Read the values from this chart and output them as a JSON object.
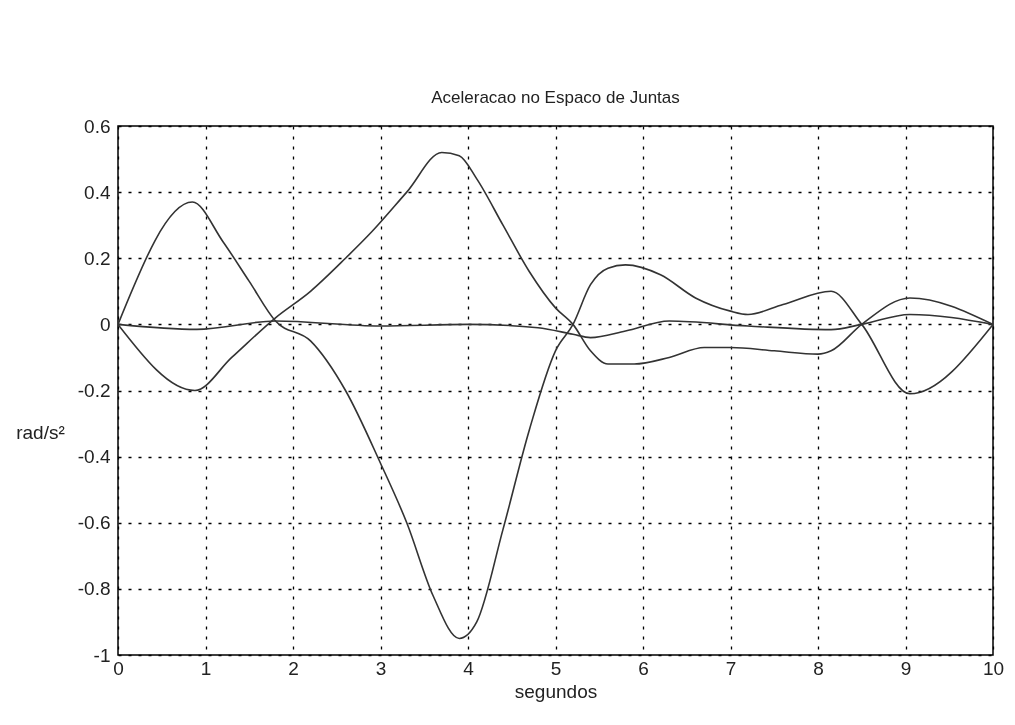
{
  "chart_data": {
    "type": "line",
    "title": "Aceleracao no Espaco de Juntas",
    "xlabel": "segundos",
    "ylabel": "rad/s²",
    "xlim": [
      0,
      10
    ],
    "xticks": [
      0,
      1,
      2,
      3,
      4,
      5,
      6,
      7,
      8,
      9,
      10
    ],
    "ylim": [
      -1,
      0.6
    ],
    "yticks": [
      -1,
      -0.8,
      -0.6,
      -0.4,
      -0.2,
      0,
      0.2,
      0.4,
      0.6
    ],
    "grid": true,
    "line_style": "solid",
    "series": [
      {
        "color": "#333333",
        "x": [
          0,
          0.85,
          1.2,
          1.5,
          1.8,
          2.2,
          2.6,
          3,
          3.3,
          3.6,
          3.9,
          4.1,
          4.4,
          4.7,
          5,
          5.2,
          5.4,
          5.6,
          5.8,
          6.2,
          6.6,
          7,
          7.2,
          7.6,
          8.15,
          8.5,
          9.05,
          10
        ],
        "values": [
          0,
          0.37,
          0.25,
          0.13,
          0.01,
          -0.05,
          -0.2,
          -0.42,
          -0.6,
          -0.82,
          -0.95,
          -0.9,
          -0.62,
          -0.32,
          -0.08,
          0,
          0.12,
          0.17,
          0.18,
          0.15,
          0.08,
          0.04,
          0.03,
          0.06,
          0.1,
          0,
          -0.21,
          0
        ]
      },
      {
        "color": "#333333",
        "x": [
          0,
          0.88,
          1.3,
          1.8,
          2.2,
          2.6,
          2.9,
          3.3,
          3.7,
          3.9,
          4.1,
          4.4,
          4.7,
          5,
          5.2,
          5.4,
          5.6,
          5.9,
          6.3,
          6.7,
          7,
          7.5,
          8,
          8.15,
          8.5,
          9.05,
          10
        ],
        "values": [
          0,
          -0.2,
          -0.1,
          0.02,
          0.1,
          0.2,
          0.28,
          0.4,
          0.52,
          0.51,
          0.44,
          0.3,
          0.16,
          0.05,
          0,
          -0.08,
          -0.12,
          -0.12,
          -0.1,
          -0.07,
          -0.07,
          -0.08,
          -0.09,
          -0.08,
          0,
          0.08,
          0
        ]
      },
      {
        "color": "#333333",
        "x": [
          0,
          0.9,
          1.8,
          3,
          4,
          4.8,
          5.2,
          5.4,
          5.8,
          6.3,
          7.2,
          8.15,
          8.5,
          9.05,
          10
        ],
        "values": [
          0,
          -0.015,
          0.01,
          -0.005,
          0,
          -0.01,
          -0.03,
          -0.04,
          -0.02,
          0.01,
          -0.005,
          -0.016,
          0,
          0.03,
          0
        ]
      }
    ]
  }
}
